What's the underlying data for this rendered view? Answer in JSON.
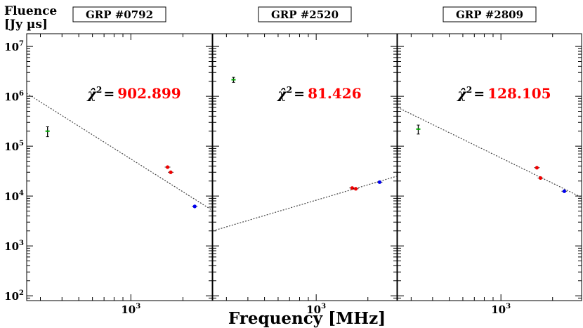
{
  "chart_data": {
    "type": "scatter",
    "ylabel_line1": "Fluence",
    "ylabel_line2": "[Jy  µs]",
    "xlabel": "Frequency [MHz]",
    "xscale": "log",
    "yscale": "log",
    "xlim": [
      250,
      2950
    ],
    "ylim": [
      80,
      18000000
    ],
    "y_ticks": [
      {
        "value": 100,
        "label": "10",
        "exp": "2"
      },
      {
        "value": 1000,
        "label": "10",
        "exp": "3"
      },
      {
        "value": 10000,
        "label": "10",
        "exp": "4"
      },
      {
        "value": 100000,
        "label": "10",
        "exp": "5"
      },
      {
        "value": 1000000,
        "label": "10",
        "exp": "6"
      },
      {
        "value": 10000000,
        "label": "10",
        "exp": "7"
      }
    ],
    "x_ticks": [
      {
        "value": 1000,
        "label": "10",
        "exp": "3"
      }
    ],
    "chi_symbol": "χ̂",
    "chi_exp": "2",
    "chi_eq": "=",
    "panels": [
      {
        "title": "GRP #0792",
        "chi2": "902.899",
        "fit": {
          "x": [
            250,
            2950
          ],
          "y": [
            1150000,
            5200
          ]
        },
        "points": [
          {
            "x": 330,
            "y": 200000,
            "color": "#00aa00",
            "err": [
              155000,
              245000
            ]
          },
          {
            "x": 1630,
            "y": 38000,
            "color": "#ee0000"
          },
          {
            "x": 1700,
            "y": 30000,
            "color": "#ee0000"
          },
          {
            "x": 2340,
            "y": 6200,
            "color": "#0000ee"
          }
        ]
      },
      {
        "title": "GRP #2520",
        "chi2": "81.426",
        "fit": {
          "x": [
            250,
            2950
          ],
          "y": [
            2000,
            25000
          ]
        },
        "points": [
          {
            "x": 330,
            "y": 2150000,
            "color": "#00aa00",
            "err": [
              1900000,
              2400000
            ]
          },
          {
            "x": 1620,
            "y": 14500,
            "color": "#ee0000"
          },
          {
            "x": 1700,
            "y": 14000,
            "color": "#ee0000"
          },
          {
            "x": 2340,
            "y": 19000,
            "color": "#0000ee"
          }
        ]
      },
      {
        "title": "GRP #2809",
        "chi2": "128.105",
        "fit": {
          "x": [
            250,
            2950
          ],
          "y": [
            600000,
            9400
          ]
        },
        "points": [
          {
            "x": 330,
            "y": 220000,
            "color": "#00aa00",
            "err": [
              175000,
              265000
            ]
          },
          {
            "x": 1620,
            "y": 37000,
            "color": "#ee0000"
          },
          {
            "x": 1700,
            "y": 23000,
            "color": "#ee0000"
          },
          {
            "x": 2340,
            "y": 12500,
            "color": "#0000ee"
          }
        ]
      }
    ]
  }
}
